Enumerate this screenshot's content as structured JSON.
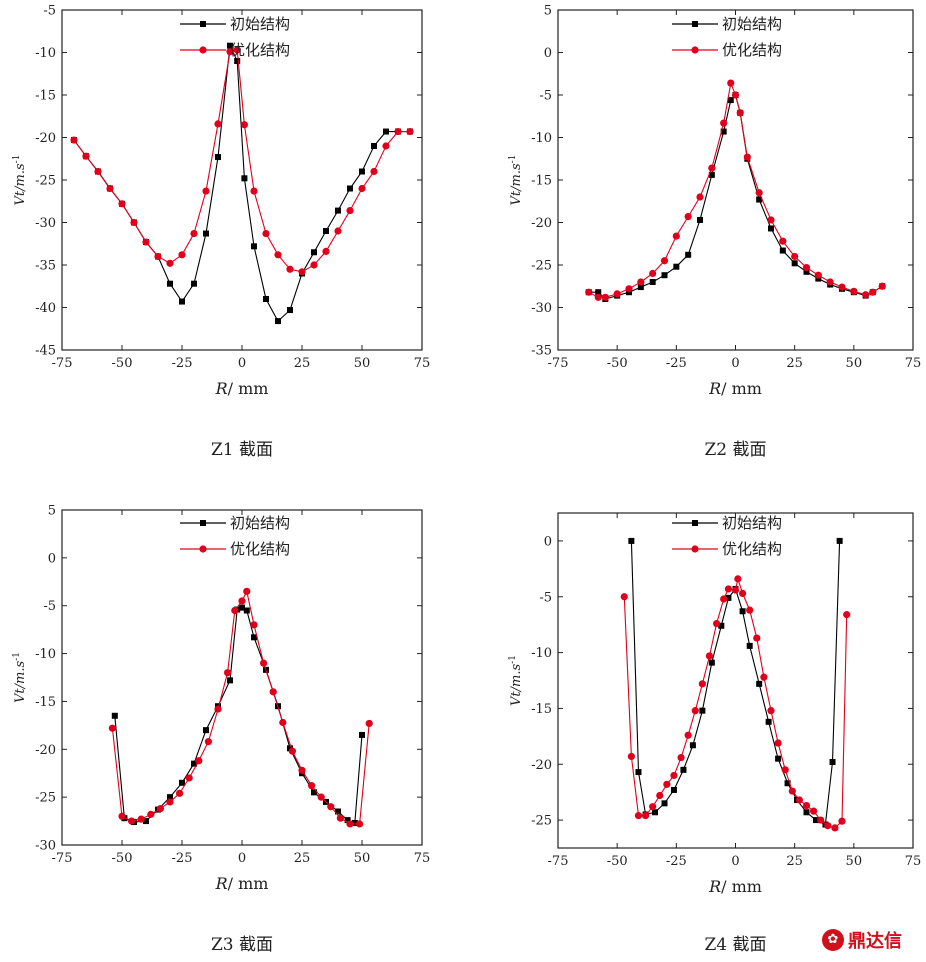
{
  "legend": {
    "series1": "初始结构",
    "series2": "优化结构"
  },
  "colors": {
    "series1": "#000000",
    "series2": "#e0001b"
  },
  "logo_text": "鼎达信",
  "chart_data": [
    {
      "type": "line",
      "caption": "Z1 截面",
      "xlabel_main": "R",
      "xlabel_unit": "/ mm",
      "ylabel_main": "Vt",
      "ylabel_unit": "/m.s",
      "ylabel_exp": "-1",
      "xlim": [
        -75,
        75
      ],
      "ylim": [
        -45,
        -5
      ],
      "xticks": [
        -75,
        -50,
        -25,
        0,
        25,
        50,
        75
      ],
      "yticks": [
        -45,
        -40,
        -35,
        -30,
        -25,
        -20,
        -15,
        -10,
        -5
      ],
      "series": [
        {
          "name": "初始结构",
          "x": [
            -70,
            -65,
            -60,
            -55,
            -50,
            -45,
            -40,
            -35,
            -30,
            -25,
            -20,
            -15,
            -10,
            -5,
            -2,
            1,
            5,
            10,
            15,
            20,
            25,
            30,
            35,
            40,
            45,
            50,
            55,
            60,
            65,
            70
          ],
          "y": [
            -20.3,
            -22.2,
            -24,
            -26,
            -27.8,
            -30,
            -32.3,
            -34,
            -37.2,
            -39.3,
            -37.2,
            -31.3,
            -22.3,
            -9.2,
            -11,
            -24.8,
            -32.8,
            -39,
            -41.6,
            -40.3,
            -36,
            -33.5,
            -31,
            -28.6,
            -26,
            -24,
            -21,
            -19.3,
            -19.3,
            -19.3
          ]
        },
        {
          "name": "优化结构",
          "x": [
            -70,
            -65,
            -60,
            -55,
            -50,
            -45,
            -40,
            -35,
            -30,
            -25,
            -20,
            -15,
            -10,
            -5,
            -2,
            1,
            5,
            10,
            15,
            20,
            25,
            30,
            35,
            40,
            45,
            50,
            55,
            60,
            65,
            70
          ],
          "y": [
            -20.3,
            -22.2,
            -24,
            -26,
            -27.8,
            -30,
            -32.3,
            -34,
            -34.8,
            -33.8,
            -31.3,
            -26.3,
            -18.4,
            -9.9,
            -9.7,
            -18.5,
            -26.3,
            -31.3,
            -33.8,
            -35.5,
            -35.8,
            -35,
            -33.4,
            -31,
            -28.6,
            -26,
            -24,
            -21,
            -19.3,
            -19.3
          ]
        }
      ]
    },
    {
      "type": "line",
      "caption": "Z2 截面",
      "xlabel_main": "R",
      "xlabel_unit": "/ mm",
      "ylabel_main": "Vt",
      "ylabel_unit": "/m.s",
      "ylabel_exp": "-1",
      "xlim": [
        -75,
        75
      ],
      "ylim": [
        -35,
        5
      ],
      "xticks": [
        -75,
        -50,
        -25,
        0,
        25,
        50,
        75
      ],
      "yticks": [
        -35,
        -30,
        -25,
        -20,
        -15,
        -10,
        -5,
        0,
        5
      ],
      "series": [
        {
          "name": "初始结构",
          "x": [
            -62,
            -58,
            -55,
            -50,
            -45,
            -40,
            -35,
            -30,
            -25,
            -20,
            -15,
            -10,
            -5,
            -2,
            0,
            2,
            5,
            10,
            15,
            20,
            25,
            30,
            35,
            40,
            45,
            50,
            55,
            58,
            62
          ],
          "y": [
            -28.2,
            -28.2,
            -29,
            -28.6,
            -28.2,
            -27.6,
            -27,
            -26.2,
            -25.2,
            -23.8,
            -19.7,
            -14.4,
            -9.3,
            -5.6,
            -5,
            -7.1,
            -12.5,
            -17.3,
            -20.7,
            -23.3,
            -24.8,
            -25.8,
            -26.6,
            -27.3,
            -27.8,
            -28.2,
            -28.6,
            -28.2,
            -27.5
          ]
        },
        {
          "name": "优化结构",
          "x": [
            -62,
            -58,
            -55,
            -50,
            -45,
            -40,
            -35,
            -30,
            -25,
            -20,
            -15,
            -10,
            -5,
            -2,
            0,
            2,
            5,
            10,
            15,
            20,
            25,
            30,
            35,
            40,
            45,
            50,
            55,
            58,
            62
          ],
          "y": [
            -28.2,
            -28.8,
            -28.8,
            -28.4,
            -27.8,
            -27,
            -26,
            -24.5,
            -21.6,
            -19.3,
            -17,
            -13.6,
            -8.3,
            -3.6,
            -5,
            -7.1,
            -12.3,
            -16.5,
            -19.7,
            -22.2,
            -24,
            -25.3,
            -26.2,
            -27,
            -27.6,
            -28.1,
            -28.5,
            -28.2,
            -27.5
          ]
        }
      ]
    },
    {
      "type": "line",
      "caption": "Z3 截面",
      "xlabel_main": "R",
      "xlabel_unit": "/ mm",
      "ylabel_main": "Vt",
      "ylabel_unit": "/m.s",
      "ylabel_exp": "-1",
      "xlim": [
        -75,
        75
      ],
      "ylim": [
        -30,
        5
      ],
      "xticks": [
        -75,
        -50,
        -25,
        0,
        25,
        50,
        75
      ],
      "yticks": [
        -30,
        -25,
        -20,
        -15,
        -10,
        -5,
        0,
        5
      ],
      "series": [
        {
          "name": "初始结构",
          "x": [
            -53,
            -49,
            -45,
            -40,
            -35,
            -30,
            -25,
            -20,
            -15,
            -10,
            -5,
            -2,
            0,
            2,
            5,
            10,
            15,
            20,
            25,
            30,
            35,
            40,
            44,
            47,
            50
          ],
          "y": [
            -16.5,
            -27.2,
            -27.6,
            -27.5,
            -26.3,
            -25,
            -23.5,
            -21.5,
            -18,
            -15.5,
            -12.8,
            -5.4,
            -5.2,
            -5.5,
            -8.3,
            -11.7,
            -15.5,
            -19.9,
            -22.5,
            -24.5,
            -25.5,
            -26.5,
            -27.4,
            -27.7,
            -18.5
          ]
        },
        {
          "name": "优化结构",
          "x": [
            -54,
            -50,
            -46,
            -42,
            -38,
            -34,
            -30,
            -26,
            -22,
            -18,
            -14,
            -10,
            -6,
            -3,
            0,
            2,
            5,
            9,
            13,
            17,
            21,
            25,
            29,
            33,
            37,
            41,
            45,
            49,
            53
          ],
          "y": [
            -17.8,
            -27,
            -27.5,
            -27.3,
            -26.8,
            -26.2,
            -25.5,
            -24.6,
            -23,
            -21.2,
            -19.2,
            -15.8,
            -12,
            -5.5,
            -4.5,
            -3.5,
            -7,
            -11,
            -14,
            -17.2,
            -20.2,
            -22.2,
            -23.8,
            -25,
            -26,
            -27.2,
            -27.8,
            -27.8,
            -17.3
          ]
        }
      ]
    },
    {
      "type": "line",
      "caption": "Z4 截面",
      "xlabel_main": "R",
      "xlabel_unit": "/ mm",
      "ylabel_main": "Vt",
      "ylabel_unit": "/m.s",
      "ylabel_exp": "-1",
      "xlim": [
        -75,
        75
      ],
      "ylim": [
        -27.5,
        2.5
      ],
      "xticks": [
        -75,
        -50,
        -25,
        0,
        25,
        50,
        75
      ],
      "yticks": [
        -25,
        -20,
        -15,
        -10,
        -5,
        0
      ],
      "series": [
        {
          "name": "初始结构",
          "x": [
            -44,
            -41,
            -38,
            -34,
            -30,
            -26,
            -22,
            -18,
            -14,
            -10,
            -6,
            -3,
            0,
            3,
            6,
            10,
            14,
            18,
            22,
            26,
            30,
            34,
            38,
            41,
            44
          ],
          "y": [
            0,
            -20.7,
            -24.5,
            -24.3,
            -23.5,
            -22.3,
            -20.5,
            -18.3,
            -15.2,
            -10.9,
            -7.6,
            -5.1,
            -4.3,
            -6.3,
            -9.4,
            -12.8,
            -16.2,
            -19.5,
            -21.7,
            -23.2,
            -24.3,
            -25,
            -25.4,
            -19.8,
            0
          ]
        },
        {
          "name": "优化结构",
          "x": [
            -47,
            -44,
            -41,
            -38,
            -35,
            -32,
            -29,
            -26,
            -23,
            -20,
            -17,
            -14,
            -11,
            -8,
            -5,
            -3,
            0,
            1,
            3,
            6,
            9,
            12,
            15,
            18,
            21,
            24,
            27,
            30,
            33,
            36,
            39,
            42,
            45,
            47
          ],
          "y": [
            -5,
            -19.3,
            -24.6,
            -24.6,
            -23.8,
            -22.8,
            -21.8,
            -21,
            -19.4,
            -17.4,
            -15.2,
            -12.8,
            -10.3,
            -7.4,
            -5.2,
            -4.3,
            -4.4,
            -3.4,
            -4.7,
            -6.2,
            -8.7,
            -12.2,
            -15.2,
            -18.1,
            -20.5,
            -22.4,
            -23.2,
            -23.7,
            -24.2,
            -25,
            -25.5,
            -25.7,
            -25.1,
            -6.6
          ]
        }
      ]
    }
  ]
}
